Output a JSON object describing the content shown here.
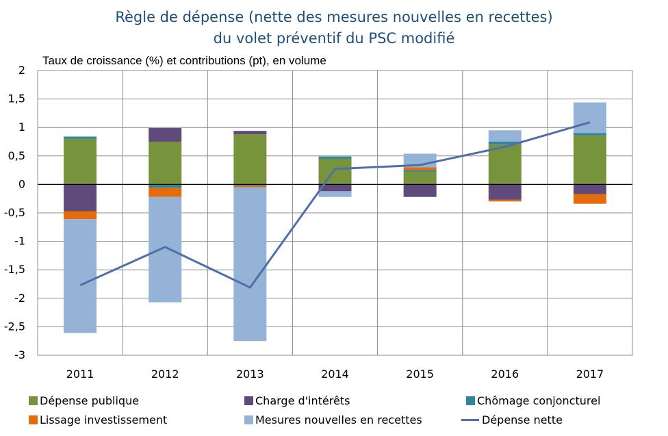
{
  "chart_data": {
    "type": "bar",
    "title": "Règle de dépense (nette des mesures nouvelles en recettes)",
    "subtitle": "du volet préventif du PSC modifié",
    "ylabel": "Taux de croissance (%) et contributions (pt), en volume",
    "ylim": [
      -3,
      2
    ],
    "yticks": [
      "2",
      "1,5",
      "1",
      "0,5",
      "0",
      "-0,5",
      "-1",
      "-1,5",
      "-2",
      "-2,5",
      "-3"
    ],
    "ytick_values": [
      2,
      1.5,
      1,
      0.5,
      0,
      -0.5,
      -1,
      -1.5,
      -2,
      -2.5,
      -3
    ],
    "categories": [
      "2011",
      "2012",
      "2013",
      "2014",
      "2015",
      "2016",
      "2017"
    ],
    "stacked": true,
    "grid": true,
    "legend_position": "bottom",
    "series": [
      {
        "name": "Dépense publique",
        "color": "#77933c",
        "values": [
          0.8,
          0.75,
          0.88,
          0.45,
          0.22,
          0.7,
          0.86
        ]
      },
      {
        "name": "Charge d'intérêts",
        "color": "#604a7b",
        "values": [
          -0.47,
          0.24,
          0.06,
          -0.12,
          -0.22,
          -0.27,
          -0.17
        ]
      },
      {
        "name": "Chômage conjoncturel",
        "color": "#31859c",
        "values": [
          0.04,
          -0.06,
          -0.02,
          0.04,
          0.03,
          0.05,
          0.04
        ]
      },
      {
        "name": "Lissage investissement",
        "color": "#e46c0a",
        "values": [
          -0.14,
          -0.16,
          -0.03,
          0.0,
          0.05,
          -0.03,
          -0.17
        ]
      },
      {
        "name": "Mesures nouvelles en recettes",
        "color": "#95b3d7",
        "values": [
          -2.0,
          -1.85,
          -2.7,
          -0.1,
          0.24,
          0.2,
          0.54
        ]
      }
    ],
    "line": {
      "name": "Dépense nette",
      "color": "#4f6fa8",
      "values": [
        -1.77,
        -1.1,
        -1.81,
        0.27,
        0.34,
        0.66,
        1.09
      ]
    }
  }
}
